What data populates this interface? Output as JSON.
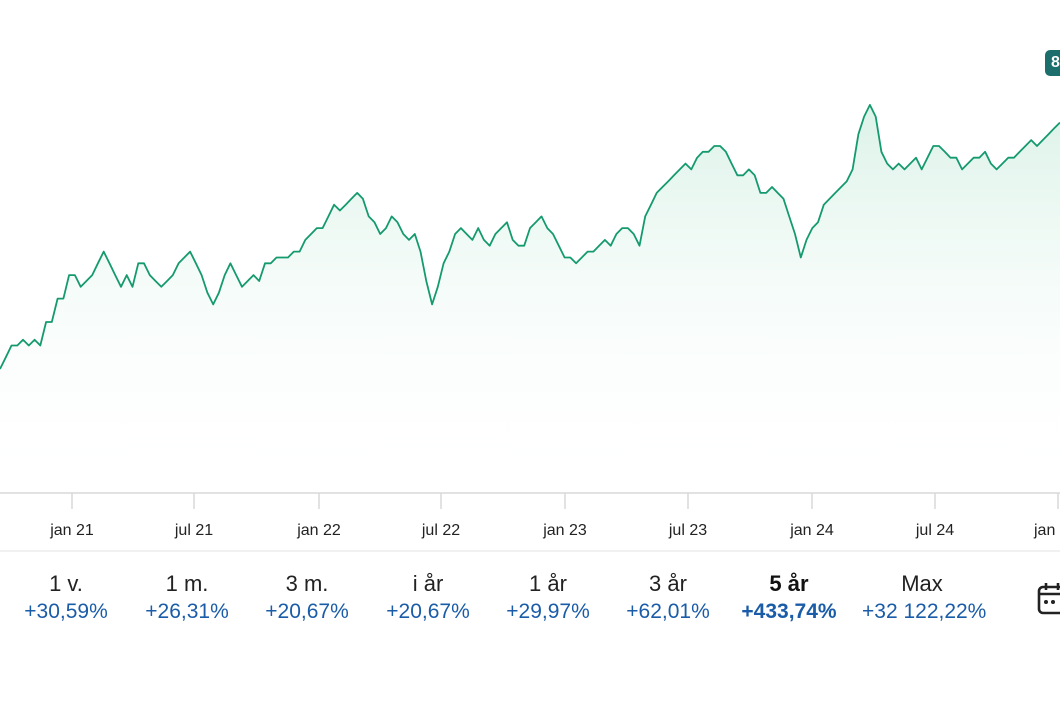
{
  "chart_data": {
    "type": "area",
    "x_tick_labels": [
      "jan 21",
      "jul 21",
      "jan 22",
      "jul 22",
      "jan 23",
      "jul 23",
      "jan 24",
      "jul 24",
      "jan"
    ],
    "price_badge": "8",
    "series": [
      {
        "color": "#159a6f",
        "values": [
          39,
          40,
          41,
          41,
          41.5,
          41,
          41.5,
          41,
          43,
          43,
          45,
          45,
          47,
          47,
          46,
          46.5,
          47,
          48,
          49,
          48,
          47,
          46,
          47,
          46,
          48,
          48,
          47,
          46.5,
          46,
          46.5,
          47,
          48,
          48.5,
          49,
          48,
          47,
          45.5,
          44.5,
          45.5,
          47,
          48,
          47,
          46,
          46.5,
          47,
          46.5,
          48,
          48,
          48.5,
          48.5,
          48.5,
          49,
          49,
          50,
          50.5,
          51,
          51,
          52,
          53,
          52.5,
          53,
          53.5,
          54,
          53.5,
          52,
          51.5,
          50.5,
          51,
          52,
          51.5,
          50.5,
          50,
          50.5,
          49,
          46.5,
          44.5,
          46,
          48,
          49,
          50.5,
          51,
          50.5,
          50,
          51,
          50,
          49.5,
          50.5,
          51,
          51.5,
          50,
          49.5,
          49.5,
          51,
          51.5,
          52,
          51,
          50.5,
          49.5,
          48.5,
          48.5,
          48,
          48.5,
          49,
          49,
          49.5,
          50,
          49.5,
          50.5,
          51,
          51,
          50.5,
          49.5,
          52,
          53,
          54,
          54.5,
          55,
          55.5,
          56,
          56.5,
          56,
          57,
          57.5,
          57.5,
          58,
          58,
          57.5,
          56.5,
          55.5,
          55.5,
          56,
          55.5,
          54,
          54,
          54.5,
          54,
          53.5,
          52,
          50.5,
          48.5,
          50,
          51,
          51.5,
          53,
          53.5,
          54,
          54.5,
          55,
          56,
          59,
          60.5,
          61.5,
          60.5,
          57.5,
          56.5,
          56,
          56.5,
          56,
          56.5,
          57,
          56,
          57,
          58,
          58,
          57.5,
          57,
          57,
          56,
          56.5,
          57,
          57,
          57.5,
          56.5,
          56,
          56.5,
          57,
          57,
          57.5,
          58,
          58.5,
          58,
          58.5,
          59,
          59.5,
          60
        ]
      }
    ]
  },
  "ranges": [
    {
      "label": "1 v.",
      "change": "+30,59%"
    },
    {
      "label": "1 m.",
      "change": "+26,31%"
    },
    {
      "label": "3 m.",
      "change": "+20,67%"
    },
    {
      "label": "i år",
      "change": "+20,67%"
    },
    {
      "label": "1 år",
      "change": "+29,97%"
    },
    {
      "label": "3 år",
      "change": "+62,01%"
    },
    {
      "label": "5 år",
      "change": "+433,74%"
    },
    {
      "label": "Max",
      "change": "+32 122,22%"
    }
  ],
  "active_range": "5 år",
  "icons": {
    "calendar": "calendar-icon"
  }
}
